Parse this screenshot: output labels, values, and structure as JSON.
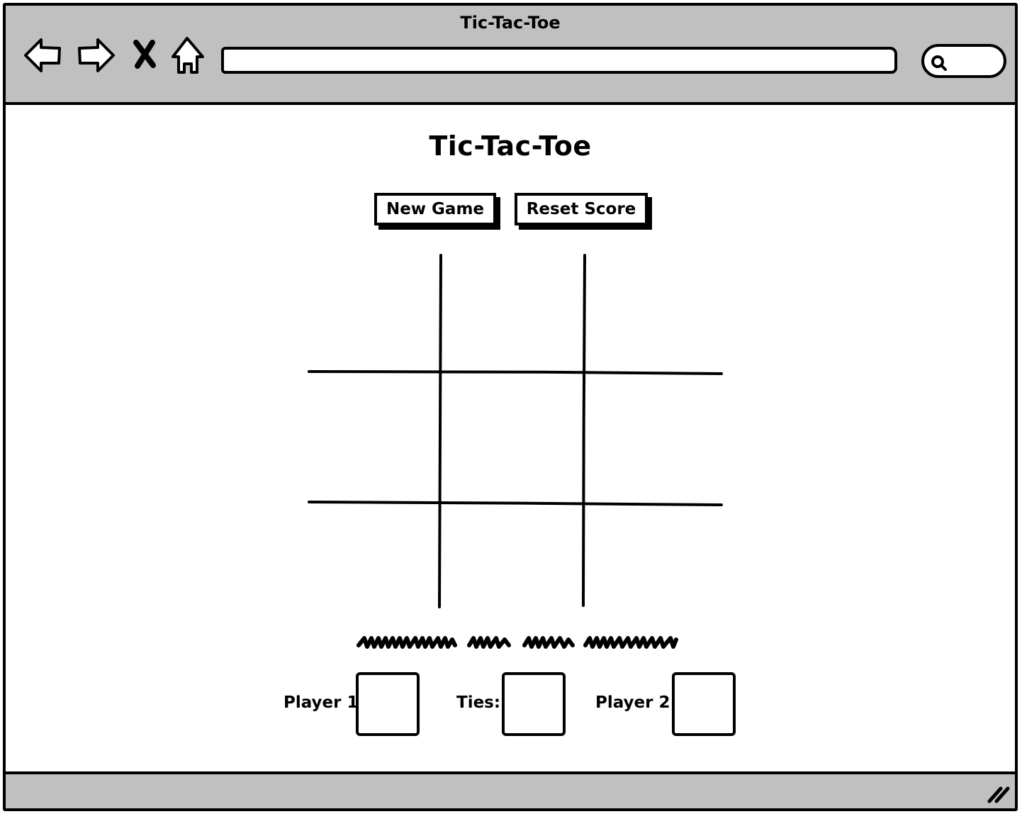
{
  "window": {
    "title": "Tic-Tac-Toe"
  },
  "toolbar": {
    "back_icon": "back-arrow-icon",
    "forward_icon": "forward-arrow-icon",
    "stop_icon": "close-icon",
    "home_icon": "home-icon",
    "address_value": "",
    "search_icon": "search-icon"
  },
  "main": {
    "title": "Tic-Tac-Toe",
    "buttons": {
      "new_game": "New Game",
      "reset_score": "Reset Score"
    },
    "board": {
      "rows": 3,
      "cols": 3,
      "cells": [
        "",
        "",
        "",
        "",
        "",
        "",
        "",
        "",
        ""
      ]
    },
    "status_message": "",
    "scores": {
      "player1_label": "Player 1:",
      "player1_value": "",
      "ties_label": "Ties:",
      "ties_value": "",
      "player2_label": "Player 2:",
      "player2_value": ""
    }
  },
  "colors": {
    "chrome": "#c0c0c0",
    "ink": "#000000",
    "paper": "#ffffff"
  }
}
